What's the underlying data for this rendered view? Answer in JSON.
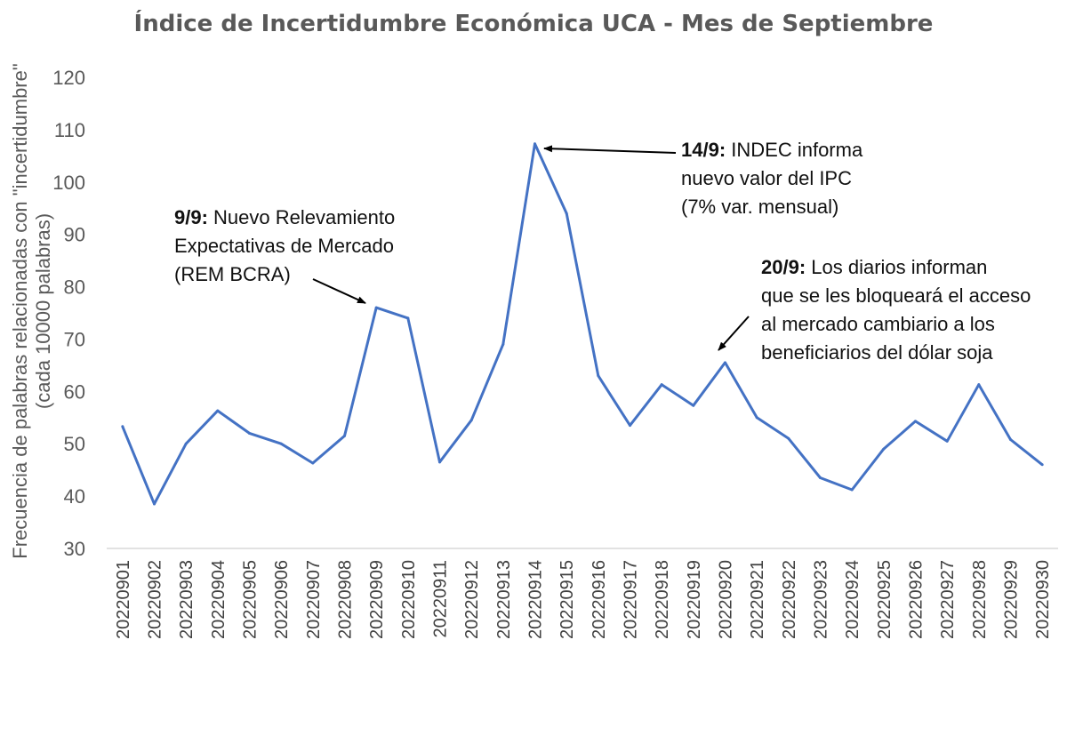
{
  "chart_data": {
    "type": "line",
    "title": "Índice de Incertidumbre Económica UCA - Mes de Septiembre",
    "ylabel_lines": [
      "Frecuencia de palabras relacionadas con \"incertidumbre\"",
      "(cada 10000 palabras)"
    ],
    "ylim": [
      30,
      120
    ],
    "yticks": [
      30,
      40,
      50,
      60,
      70,
      80,
      90,
      100,
      110,
      120
    ],
    "grid": false,
    "legend": "none",
    "line_color": "#4472C4",
    "x": [
      "20220901",
      "20220902",
      "20220903",
      "20220904",
      "20220905",
      "20220906",
      "20220907",
      "20220908",
      "20220909",
      "20220910",
      "20220911",
      "20220912",
      "20220913",
      "20220914",
      "20220915",
      "20220916",
      "20220917",
      "20220918",
      "20220919",
      "20220920",
      "20220921",
      "20220922",
      "20220923",
      "20220924",
      "20220925",
      "20220926",
      "20220927",
      "20220928",
      "20220929",
      "20220930"
    ],
    "series": [
      {
        "values": [
          53.3,
          38.5,
          50.0,
          56.3,
          52.0,
          50.0,
          46.3,
          51.5,
          76.0,
          74.0,
          46.5,
          54.5,
          69.0,
          107.3,
          94.0,
          63.0,
          53.5,
          61.3,
          57.3,
          65.5,
          55.0,
          51.0,
          43.5,
          41.2,
          49.0,
          54.3,
          50.5,
          61.3,
          50.8,
          46.0
        ]
      }
    ],
    "annotations": [
      {
        "bold": "9/9:",
        "lines": [
          " Nuevo Relevamiento",
          "Expectativas de Mercado",
          "(REM BCRA)"
        ],
        "target": "20220909"
      },
      {
        "bold": "14/9:",
        "lines": [
          " INDEC informa",
          "nuevo valor del IPC",
          "(7% var. mensual)"
        ],
        "target": "20220914"
      },
      {
        "bold": "20/9:",
        "lines": [
          " Los diarios informan",
          "que se les bloqueará el acceso",
          "al mercado cambiario a los",
          "beneficiarios del dólar soja"
        ],
        "target": "20220920"
      }
    ]
  }
}
